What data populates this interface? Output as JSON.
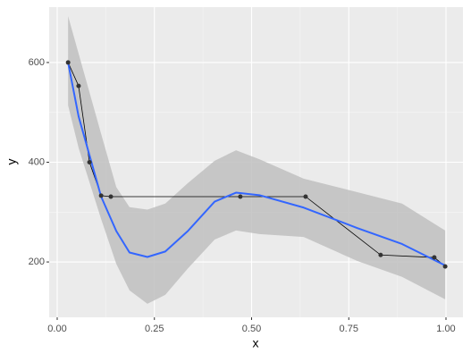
{
  "chart_data": {
    "type": "line",
    "x_label": "x",
    "y_label": "y",
    "x": [
      0.028,
      0.055,
      0.083,
      0.113,
      0.138,
      0.471,
      0.639,
      0.832,
      0.97,
      0.998
    ],
    "values": [
      600,
      553,
      400,
      333,
      331,
      331,
      331,
      214,
      209,
      191
    ],
    "color": "#000000",
    "smooth": {
      "color": "#3366ff",
      "band_color": "#c0c0c0",
      "x": [
        0.028,
        0.055,
        0.113,
        0.152,
        0.186,
        0.232,
        0.278,
        0.336,
        0.405,
        0.46,
        0.52,
        0.634,
        0.772,
        0.887,
        0.998
      ],
      "values": [
        600,
        492,
        331,
        262,
        219,
        210,
        221,
        262,
        321,
        339,
        334,
        309,
        268,
        236,
        193
      ],
      "upper": [
        693,
        618,
        457,
        350,
        310,
        305,
        317,
        358,
        403,
        424,
        406,
        367,
        340,
        317,
        263
      ],
      "lower": [
        514,
        429,
        286,
        196,
        143,
        116,
        134,
        187,
        245,
        263,
        256,
        250,
        202,
        170,
        125
      ]
    },
    "xlim": [
      -0.0207,
      1.0437
    ],
    "ylim": [
      89,
      711
    ],
    "xticks": [
      {
        "value": 0,
        "label": "0.00"
      },
      {
        "value": 0.25,
        "label": "0.25"
      },
      {
        "value": 0.5,
        "label": "0.50"
      },
      {
        "value": 0.75,
        "label": "0.75"
      },
      {
        "value": 1,
        "label": "1.00"
      }
    ],
    "yticks": [
      200,
      400,
      600
    ],
    "grid": true
  }
}
